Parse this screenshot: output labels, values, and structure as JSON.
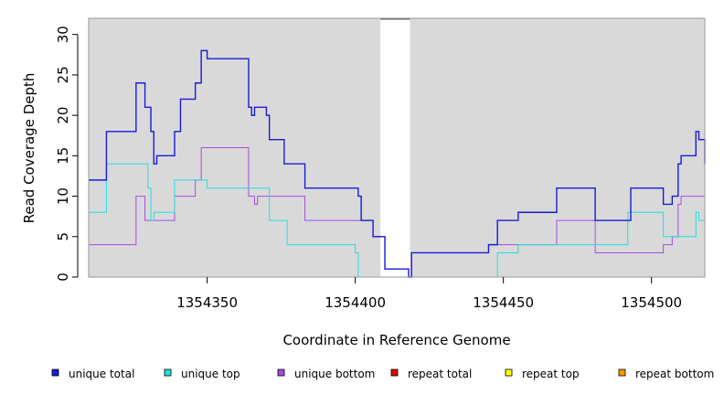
{
  "chart_data": {
    "type": "line",
    "step": true,
    "xlabel": "Coordinate in Reference Genome",
    "ylabel": "Read Coverage Depth",
    "xlim": [
      1354310,
      1354518
    ],
    "ylim": [
      0,
      32
    ],
    "x_ticks": [
      1354350,
      1354400,
      1354450,
      1354500
    ],
    "y_ticks": [
      0,
      5,
      10,
      15,
      20,
      25,
      30
    ],
    "background_color": "#d9d9d9",
    "gap": [
      1354408.5,
      1354418.5
    ],
    "grid": false,
    "legend_position": "bottom",
    "series": [
      {
        "name": "unique total",
        "color": "#1b1bd6",
        "points": [
          [
            1354310,
            12
          ],
          [
            1354316,
            18
          ],
          [
            1354326,
            24
          ],
          [
            1354329,
            21
          ],
          [
            1354331,
            18
          ],
          [
            1354332,
            14
          ],
          [
            1354333,
            15
          ],
          [
            1354339,
            18
          ],
          [
            1354341,
            22
          ],
          [
            1354346,
            24
          ],
          [
            1354348,
            28
          ],
          [
            1354350,
            27
          ],
          [
            1354364,
            21
          ],
          [
            1354365,
            20
          ],
          [
            1354366,
            21
          ],
          [
            1354370,
            20
          ],
          [
            1354371,
            17
          ],
          [
            1354376,
            14
          ],
          [
            1354383,
            11
          ],
          [
            1354401,
            10
          ],
          [
            1354402,
            7
          ],
          [
            1354406,
            5
          ],
          [
            1354410,
            1
          ],
          [
            1354418,
            0
          ],
          [
            1354419,
            3
          ],
          [
            1354445,
            4
          ],
          [
            1354448,
            7
          ],
          [
            1354455,
            8
          ],
          [
            1354468,
            11
          ],
          [
            1354481,
            7
          ],
          [
            1354493,
            11
          ],
          [
            1354504,
            9
          ],
          [
            1354507,
            10
          ],
          [
            1354509,
            14
          ],
          [
            1354510,
            15
          ],
          [
            1354515,
            18
          ],
          [
            1354516,
            17
          ],
          [
            1354518,
            14
          ]
        ]
      },
      {
        "name": "unique top",
        "color": "#22e0e0",
        "points": [
          [
            1354310,
            8
          ],
          [
            1354316,
            14
          ],
          [
            1354330,
            11
          ],
          [
            1354331,
            7
          ],
          [
            1354332,
            8
          ],
          [
            1354339,
            12
          ],
          [
            1354349,
            12
          ],
          [
            1354350,
            11
          ],
          [
            1354371,
            7
          ],
          [
            1354377,
            4
          ],
          [
            1354400,
            3
          ],
          [
            1354401,
            0
          ],
          [
            1354408,
            0
          ],
          [
            1354419,
            0
          ],
          [
            1354448,
            3
          ],
          [
            1354455,
            4
          ],
          [
            1354468,
            4
          ],
          [
            1354481,
            4
          ],
          [
            1354492,
            8
          ],
          [
            1354504,
            5
          ],
          [
            1354506,
            5
          ],
          [
            1354513,
            5
          ],
          [
            1354515,
            8
          ],
          [
            1354516,
            7
          ],
          [
            1354518,
            7
          ]
        ]
      },
      {
        "name": "unique bottom",
        "color": "#a54ee0",
        "points": [
          [
            1354310,
            4
          ],
          [
            1354326,
            10
          ],
          [
            1354329,
            7
          ],
          [
            1354339,
            10
          ],
          [
            1354346,
            12
          ],
          [
            1354348,
            16
          ],
          [
            1354364,
            10
          ],
          [
            1354366,
            9
          ],
          [
            1354367,
            10
          ],
          [
            1354383,
            7
          ],
          [
            1354402,
            7
          ],
          [
            1354406,
            5
          ],
          [
            1354410,
            1
          ],
          [
            1354418,
            0
          ],
          [
            1354419,
            3
          ],
          [
            1354445,
            4
          ],
          [
            1354468,
            7
          ],
          [
            1354481,
            3
          ],
          [
            1354504,
            4
          ],
          [
            1354507,
            5
          ],
          [
            1354509,
            9
          ],
          [
            1354510,
            10
          ],
          [
            1354518,
            10
          ]
        ]
      },
      {
        "name": "repeat total",
        "color": "#e00000",
        "points": [
          [
            1354310,
            0
          ],
          [
            1354518,
            0
          ]
        ]
      },
      {
        "name": "repeat top",
        "color": "#ffff00",
        "points": [
          [
            1354310,
            0
          ],
          [
            1354518,
            0
          ]
        ]
      },
      {
        "name": "repeat bottom",
        "color": "#ff9900",
        "points": [
          [
            1354310,
            0
          ],
          [
            1354518,
            0
          ]
        ]
      }
    ]
  }
}
